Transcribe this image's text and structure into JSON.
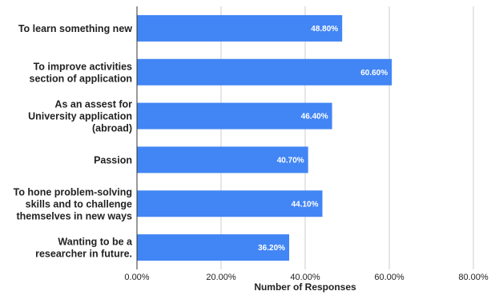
{
  "chart_data": {
    "type": "bar",
    "orientation": "horizontal",
    "categories": [
      [
        "To learn something new"
      ],
      [
        "To improve activities",
        "section of application"
      ],
      [
        "As an assest for",
        "University application",
        "(abroad)"
      ],
      [
        "Passion"
      ],
      [
        "To hone problem-solving",
        "skills and to challenge",
        "themselves in new ways"
      ],
      [
        "Wanting to be a",
        "researcher in future."
      ]
    ],
    "values": [
      48.8,
      60.6,
      46.4,
      40.7,
      44.1,
      36.2
    ],
    "data_labels": [
      "48.80%",
      "60.60%",
      "46.40%",
      "40.70%",
      "44.10%",
      "36.20%"
    ],
    "x_ticks": [
      0,
      20,
      40,
      60,
      80
    ],
    "x_tick_labels": [
      "0.00%",
      "20.00%",
      "40.00%",
      "60.00%",
      "80.00%"
    ],
    "xlim": [
      0,
      80
    ],
    "xlabel": "Number of Responses",
    "ylabel": "",
    "title": "",
    "grid": true,
    "bar_color": "#4285f4",
    "grid_color": "#cccccc",
    "axis_color": "#333333"
  }
}
